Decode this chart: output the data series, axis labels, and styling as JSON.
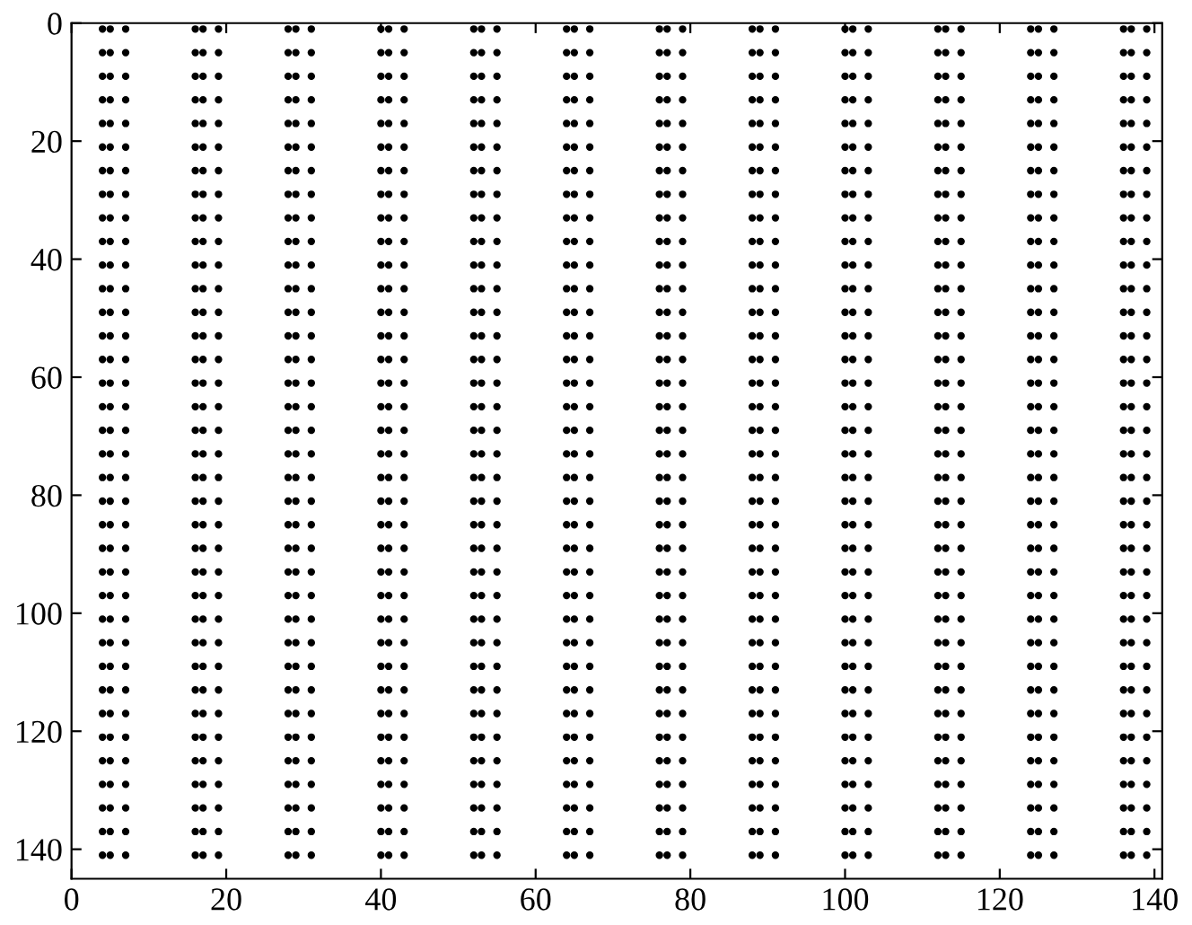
{
  "chart_data": {
    "type": "scatter",
    "marker": "circle",
    "xlim": [
      0,
      141
    ],
    "ylim": [
      145,
      0
    ],
    "xticks": [
      0,
      20,
      40,
      60,
      80,
      100,
      120,
      140
    ],
    "yticks": [
      0,
      20,
      40,
      60,
      80,
      100,
      120,
      140
    ],
    "x": [
      4,
      5,
      7,
      16,
      17,
      19,
      28,
      29,
      31,
      40,
      41,
      43,
      52,
      53,
      55,
      64,
      65,
      67,
      76,
      77,
      79,
      88,
      89,
      91,
      100,
      101,
      103,
      112,
      113,
      115,
      124,
      125,
      127,
      136,
      137,
      139
    ],
    "series": [
      {
        "color": "#000000",
        "values": [
          1,
          1,
          1,
          1,
          1,
          1,
          1,
          1,
          1,
          1,
          1,
          1,
          1,
          1,
          1,
          1,
          1,
          1,
          1,
          1,
          1,
          1,
          1,
          1,
          1,
          1,
          1,
          1,
          1,
          1,
          1,
          1,
          1,
          1,
          1,
          1
        ]
      },
      {
        "color": "#000000",
        "values": [
          5,
          5,
          5,
          5,
          5,
          5,
          5,
          5,
          5,
          5,
          5,
          5,
          5,
          5,
          5,
          5,
          5,
          5,
          5,
          5,
          5,
          5,
          5,
          5,
          5,
          5,
          5,
          5,
          5,
          5,
          5,
          5,
          5,
          5,
          5,
          5
        ]
      },
      {
        "color": "#000000",
        "values": [
          9,
          9,
          9,
          9,
          9,
          9,
          9,
          9,
          9,
          9,
          9,
          9,
          9,
          9,
          9,
          9,
          9,
          9,
          9,
          9,
          9,
          9,
          9,
          9,
          9,
          9,
          9,
          9,
          9,
          9,
          9,
          9,
          9,
          9,
          9,
          9
        ]
      },
      {
        "color": "#000000",
        "values": [
          13,
          13,
          13,
          13,
          13,
          13,
          13,
          13,
          13,
          13,
          13,
          13,
          13,
          13,
          13,
          13,
          13,
          13,
          13,
          13,
          13,
          13,
          13,
          13,
          13,
          13,
          13,
          13,
          13,
          13,
          13,
          13,
          13,
          13,
          13,
          13
        ]
      },
      {
        "color": "#000000",
        "values": [
          17,
          17,
          17,
          17,
          17,
          17,
          17,
          17,
          17,
          17,
          17,
          17,
          17,
          17,
          17,
          17,
          17,
          17,
          17,
          17,
          17,
          17,
          17,
          17,
          17,
          17,
          17,
          17,
          17,
          17,
          17,
          17,
          17,
          17,
          17,
          17
        ]
      },
      {
        "color": "#000000",
        "values": [
          21,
          21,
          21,
          21,
          21,
          21,
          21,
          21,
          21,
          21,
          21,
          21,
          21,
          21,
          21,
          21,
          21,
          21,
          21,
          21,
          21,
          21,
          21,
          21,
          21,
          21,
          21,
          21,
          21,
          21,
          21,
          21,
          21,
          21,
          21,
          21
        ]
      },
      {
        "color": "#000000",
        "values": [
          25,
          25,
          25,
          25,
          25,
          25,
          25,
          25,
          25,
          25,
          25,
          25,
          25,
          25,
          25,
          25,
          25,
          25,
          25,
          25,
          25,
          25,
          25,
          25,
          25,
          25,
          25,
          25,
          25,
          25,
          25,
          25,
          25,
          25,
          25,
          25
        ]
      },
      {
        "color": "#000000",
        "values": [
          29,
          29,
          29,
          29,
          29,
          29,
          29,
          29,
          29,
          29,
          29,
          29,
          29,
          29,
          29,
          29,
          29,
          29,
          29,
          29,
          29,
          29,
          29,
          29,
          29,
          29,
          29,
          29,
          29,
          29,
          29,
          29,
          29,
          29,
          29,
          29
        ]
      },
      {
        "color": "#000000",
        "values": [
          33,
          33,
          33,
          33,
          33,
          33,
          33,
          33,
          33,
          33,
          33,
          33,
          33,
          33,
          33,
          33,
          33,
          33,
          33,
          33,
          33,
          33,
          33,
          33,
          33,
          33,
          33,
          33,
          33,
          33,
          33,
          33,
          33,
          33,
          33,
          33
        ]
      },
      {
        "color": "#000000",
        "values": [
          37,
          37,
          37,
          37,
          37,
          37,
          37,
          37,
          37,
          37,
          37,
          37,
          37,
          37,
          37,
          37,
          37,
          37,
          37,
          37,
          37,
          37,
          37,
          37,
          37,
          37,
          37,
          37,
          37,
          37,
          37,
          37,
          37,
          37,
          37,
          37
        ]
      },
      {
        "color": "#000000",
        "values": [
          41,
          41,
          41,
          41,
          41,
          41,
          41,
          41,
          41,
          41,
          41,
          41,
          41,
          41,
          41,
          41,
          41,
          41,
          41,
          41,
          41,
          41,
          41,
          41,
          41,
          41,
          41,
          41,
          41,
          41,
          41,
          41,
          41,
          41,
          41,
          41
        ]
      },
      {
        "color": "#000000",
        "values": [
          45,
          45,
          45,
          45,
          45,
          45,
          45,
          45,
          45,
          45,
          45,
          45,
          45,
          45,
          45,
          45,
          45,
          45,
          45,
          45,
          45,
          45,
          45,
          45,
          45,
          45,
          45,
          45,
          45,
          45,
          45,
          45,
          45,
          45,
          45,
          45
        ]
      },
      {
        "color": "#000000",
        "values": [
          49,
          49,
          49,
          49,
          49,
          49,
          49,
          49,
          49,
          49,
          49,
          49,
          49,
          49,
          49,
          49,
          49,
          49,
          49,
          49,
          49,
          49,
          49,
          49,
          49,
          49,
          49,
          49,
          49,
          49,
          49,
          49,
          49,
          49,
          49,
          49
        ]
      },
      {
        "color": "#000000",
        "values": [
          53,
          53,
          53,
          53,
          53,
          53,
          53,
          53,
          53,
          53,
          53,
          53,
          53,
          53,
          53,
          53,
          53,
          53,
          53,
          53,
          53,
          53,
          53,
          53,
          53,
          53,
          53,
          53,
          53,
          53,
          53,
          53,
          53,
          53,
          53,
          53
        ]
      },
      {
        "color": "#000000",
        "values": [
          57,
          57,
          57,
          57,
          57,
          57,
          57,
          57,
          57,
          57,
          57,
          57,
          57,
          57,
          57,
          57,
          57,
          57,
          57,
          57,
          57,
          57,
          57,
          57,
          57,
          57,
          57,
          57,
          57,
          57,
          57,
          57,
          57,
          57,
          57,
          57
        ]
      },
      {
        "color": "#000000",
        "values": [
          61,
          61,
          61,
          61,
          61,
          61,
          61,
          61,
          61,
          61,
          61,
          61,
          61,
          61,
          61,
          61,
          61,
          61,
          61,
          61,
          61,
          61,
          61,
          61,
          61,
          61,
          61,
          61,
          61,
          61,
          61,
          61,
          61,
          61,
          61,
          61
        ]
      },
      {
        "color": "#000000",
        "values": [
          65,
          65,
          65,
          65,
          65,
          65,
          65,
          65,
          65,
          65,
          65,
          65,
          65,
          65,
          65,
          65,
          65,
          65,
          65,
          65,
          65,
          65,
          65,
          65,
          65,
          65,
          65,
          65,
          65,
          65,
          65,
          65,
          65,
          65,
          65,
          65
        ]
      },
      {
        "color": "#000000",
        "values": [
          69,
          69,
          69,
          69,
          69,
          69,
          69,
          69,
          69,
          69,
          69,
          69,
          69,
          69,
          69,
          69,
          69,
          69,
          69,
          69,
          69,
          69,
          69,
          69,
          69,
          69,
          69,
          69,
          69,
          69,
          69,
          69,
          69,
          69,
          69,
          69
        ]
      },
      {
        "color": "#000000",
        "values": [
          73,
          73,
          73,
          73,
          73,
          73,
          73,
          73,
          73,
          73,
          73,
          73,
          73,
          73,
          73,
          73,
          73,
          73,
          73,
          73,
          73,
          73,
          73,
          73,
          73,
          73,
          73,
          73,
          73,
          73,
          73,
          73,
          73,
          73,
          73,
          73
        ]
      },
      {
        "color": "#000000",
        "values": [
          77,
          77,
          77,
          77,
          77,
          77,
          77,
          77,
          77,
          77,
          77,
          77,
          77,
          77,
          77,
          77,
          77,
          77,
          77,
          77,
          77,
          77,
          77,
          77,
          77,
          77,
          77,
          77,
          77,
          77,
          77,
          77,
          77,
          77,
          77,
          77
        ]
      },
      {
        "color": "#000000",
        "values": [
          81,
          81,
          81,
          81,
          81,
          81,
          81,
          81,
          81,
          81,
          81,
          81,
          81,
          81,
          81,
          81,
          81,
          81,
          81,
          81,
          81,
          81,
          81,
          81,
          81,
          81,
          81,
          81,
          81,
          81,
          81,
          81,
          81,
          81,
          81,
          81
        ]
      },
      {
        "color": "#000000",
        "values": [
          85,
          85,
          85,
          85,
          85,
          85,
          85,
          85,
          85,
          85,
          85,
          85,
          85,
          85,
          85,
          85,
          85,
          85,
          85,
          85,
          85,
          85,
          85,
          85,
          85,
          85,
          85,
          85,
          85,
          85,
          85,
          85,
          85,
          85,
          85,
          85
        ]
      },
      {
        "color": "#000000",
        "values": [
          89,
          89,
          89,
          89,
          89,
          89,
          89,
          89,
          89,
          89,
          89,
          89,
          89,
          89,
          89,
          89,
          89,
          89,
          89,
          89,
          89,
          89,
          89,
          89,
          89,
          89,
          89,
          89,
          89,
          89,
          89,
          89,
          89,
          89,
          89,
          89
        ]
      },
      {
        "color": "#000000",
        "values": [
          93,
          93,
          93,
          93,
          93,
          93,
          93,
          93,
          93,
          93,
          93,
          93,
          93,
          93,
          93,
          93,
          93,
          93,
          93,
          93,
          93,
          93,
          93,
          93,
          93,
          93,
          93,
          93,
          93,
          93,
          93,
          93,
          93,
          93,
          93,
          93
        ]
      },
      {
        "color": "#000000",
        "values": [
          97,
          97,
          97,
          97,
          97,
          97,
          97,
          97,
          97,
          97,
          97,
          97,
          97,
          97,
          97,
          97,
          97,
          97,
          97,
          97,
          97,
          97,
          97,
          97,
          97,
          97,
          97,
          97,
          97,
          97,
          97,
          97,
          97,
          97,
          97,
          97
        ]
      },
      {
        "color": "#000000",
        "values": [
          101,
          101,
          101,
          101,
          101,
          101,
          101,
          101,
          101,
          101,
          101,
          101,
          101,
          101,
          101,
          101,
          101,
          101,
          101,
          101,
          101,
          101,
          101,
          101,
          101,
          101,
          101,
          101,
          101,
          101,
          101,
          101,
          101,
          101,
          101,
          101
        ]
      },
      {
        "color": "#000000",
        "values": [
          105,
          105,
          105,
          105,
          105,
          105,
          105,
          105,
          105,
          105,
          105,
          105,
          105,
          105,
          105,
          105,
          105,
          105,
          105,
          105,
          105,
          105,
          105,
          105,
          105,
          105,
          105,
          105,
          105,
          105,
          105,
          105,
          105,
          105,
          105,
          105
        ]
      },
      {
        "color": "#000000",
        "values": [
          109,
          109,
          109,
          109,
          109,
          109,
          109,
          109,
          109,
          109,
          109,
          109,
          109,
          109,
          109,
          109,
          109,
          109,
          109,
          109,
          109,
          109,
          109,
          109,
          109,
          109,
          109,
          109,
          109,
          109,
          109,
          109,
          109,
          109,
          109,
          109
        ]
      },
      {
        "color": "#000000",
        "values": [
          113,
          113,
          113,
          113,
          113,
          113,
          113,
          113,
          113,
          113,
          113,
          113,
          113,
          113,
          113,
          113,
          113,
          113,
          113,
          113,
          113,
          113,
          113,
          113,
          113,
          113,
          113,
          113,
          113,
          113,
          113,
          113,
          113,
          113,
          113,
          113
        ]
      },
      {
        "color": "#000000",
        "values": [
          117,
          117,
          117,
          117,
          117,
          117,
          117,
          117,
          117,
          117,
          117,
          117,
          117,
          117,
          117,
          117,
          117,
          117,
          117,
          117,
          117,
          117,
          117,
          117,
          117,
          117,
          117,
          117,
          117,
          117,
          117,
          117,
          117,
          117,
          117,
          117
        ]
      },
      {
        "color": "#000000",
        "values": [
          121,
          121,
          121,
          121,
          121,
          121,
          121,
          121,
          121,
          121,
          121,
          121,
          121,
          121,
          121,
          121,
          121,
          121,
          121,
          121,
          121,
          121,
          121,
          121,
          121,
          121,
          121,
          121,
          121,
          121,
          121,
          121,
          121,
          121,
          121,
          121
        ]
      },
      {
        "color": "#000000",
        "values": [
          125,
          125,
          125,
          125,
          125,
          125,
          125,
          125,
          125,
          125,
          125,
          125,
          125,
          125,
          125,
          125,
          125,
          125,
          125,
          125,
          125,
          125,
          125,
          125,
          125,
          125,
          125,
          125,
          125,
          125,
          125,
          125,
          125,
          125,
          125,
          125
        ]
      },
      {
        "color": "#000000",
        "values": [
          129,
          129,
          129,
          129,
          129,
          129,
          129,
          129,
          129,
          129,
          129,
          129,
          129,
          129,
          129,
          129,
          129,
          129,
          129,
          129,
          129,
          129,
          129,
          129,
          129,
          129,
          129,
          129,
          129,
          129,
          129,
          129,
          129,
          129,
          129,
          129
        ]
      },
      {
        "color": "#000000",
        "values": [
          133,
          133,
          133,
          133,
          133,
          133,
          133,
          133,
          133,
          133,
          133,
          133,
          133,
          133,
          133,
          133,
          133,
          133,
          133,
          133,
          133,
          133,
          133,
          133,
          133,
          133,
          133,
          133,
          133,
          133,
          133,
          133,
          133,
          133,
          133,
          133
        ]
      },
      {
        "color": "#000000",
        "values": [
          137,
          137,
          137,
          137,
          137,
          137,
          137,
          137,
          137,
          137,
          137,
          137,
          137,
          137,
          137,
          137,
          137,
          137,
          137,
          137,
          137,
          137,
          137,
          137,
          137,
          137,
          137,
          137,
          137,
          137,
          137,
          137,
          137,
          137,
          137,
          137
        ]
      },
      {
        "color": "#000000",
        "values": [
          141,
          141,
          141,
          141,
          141,
          141,
          141,
          141,
          141,
          141,
          141,
          141,
          141,
          141,
          141,
          141,
          141,
          141,
          141,
          141,
          141,
          141,
          141,
          141,
          141,
          141,
          141,
          141,
          141,
          141,
          141,
          141,
          141,
          141,
          141,
          141
        ]
      }
    ]
  }
}
